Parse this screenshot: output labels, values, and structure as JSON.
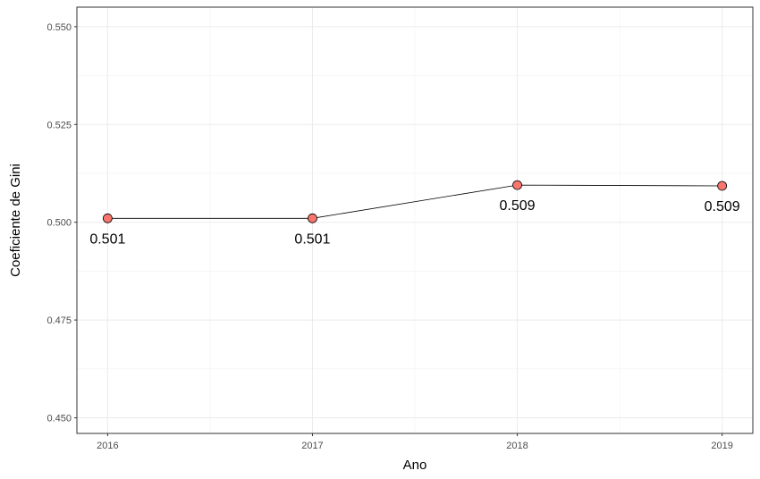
{
  "chart_data": {
    "type": "line",
    "title": "",
    "xlabel": "Ano",
    "ylabel": "Coeficiente de Gini",
    "x": [
      2016,
      2017,
      2018,
      2019
    ],
    "series": [
      {
        "values": [
          0.501,
          0.501,
          0.5095,
          0.5093
        ]
      }
    ],
    "data_labels": [
      "0.501",
      "0.501",
      "0.509",
      "0.509"
    ],
    "x_ticks": [
      "2016",
      "2017",
      "2018",
      "2019"
    ],
    "y_ticks": [
      "0.450",
      "0.475",
      "0.500",
      "0.525",
      "0.550"
    ],
    "y_tick_values": [
      0.45,
      0.475,
      0.5,
      0.525,
      0.55
    ],
    "xlim": [
      2015.85,
      2019.15
    ],
    "ylim": [
      0.446,
      0.555
    ],
    "grid": true,
    "colors": {
      "point_fill": "#f8766d",
      "line": "#000000",
      "panel_border": "#333333"
    }
  }
}
